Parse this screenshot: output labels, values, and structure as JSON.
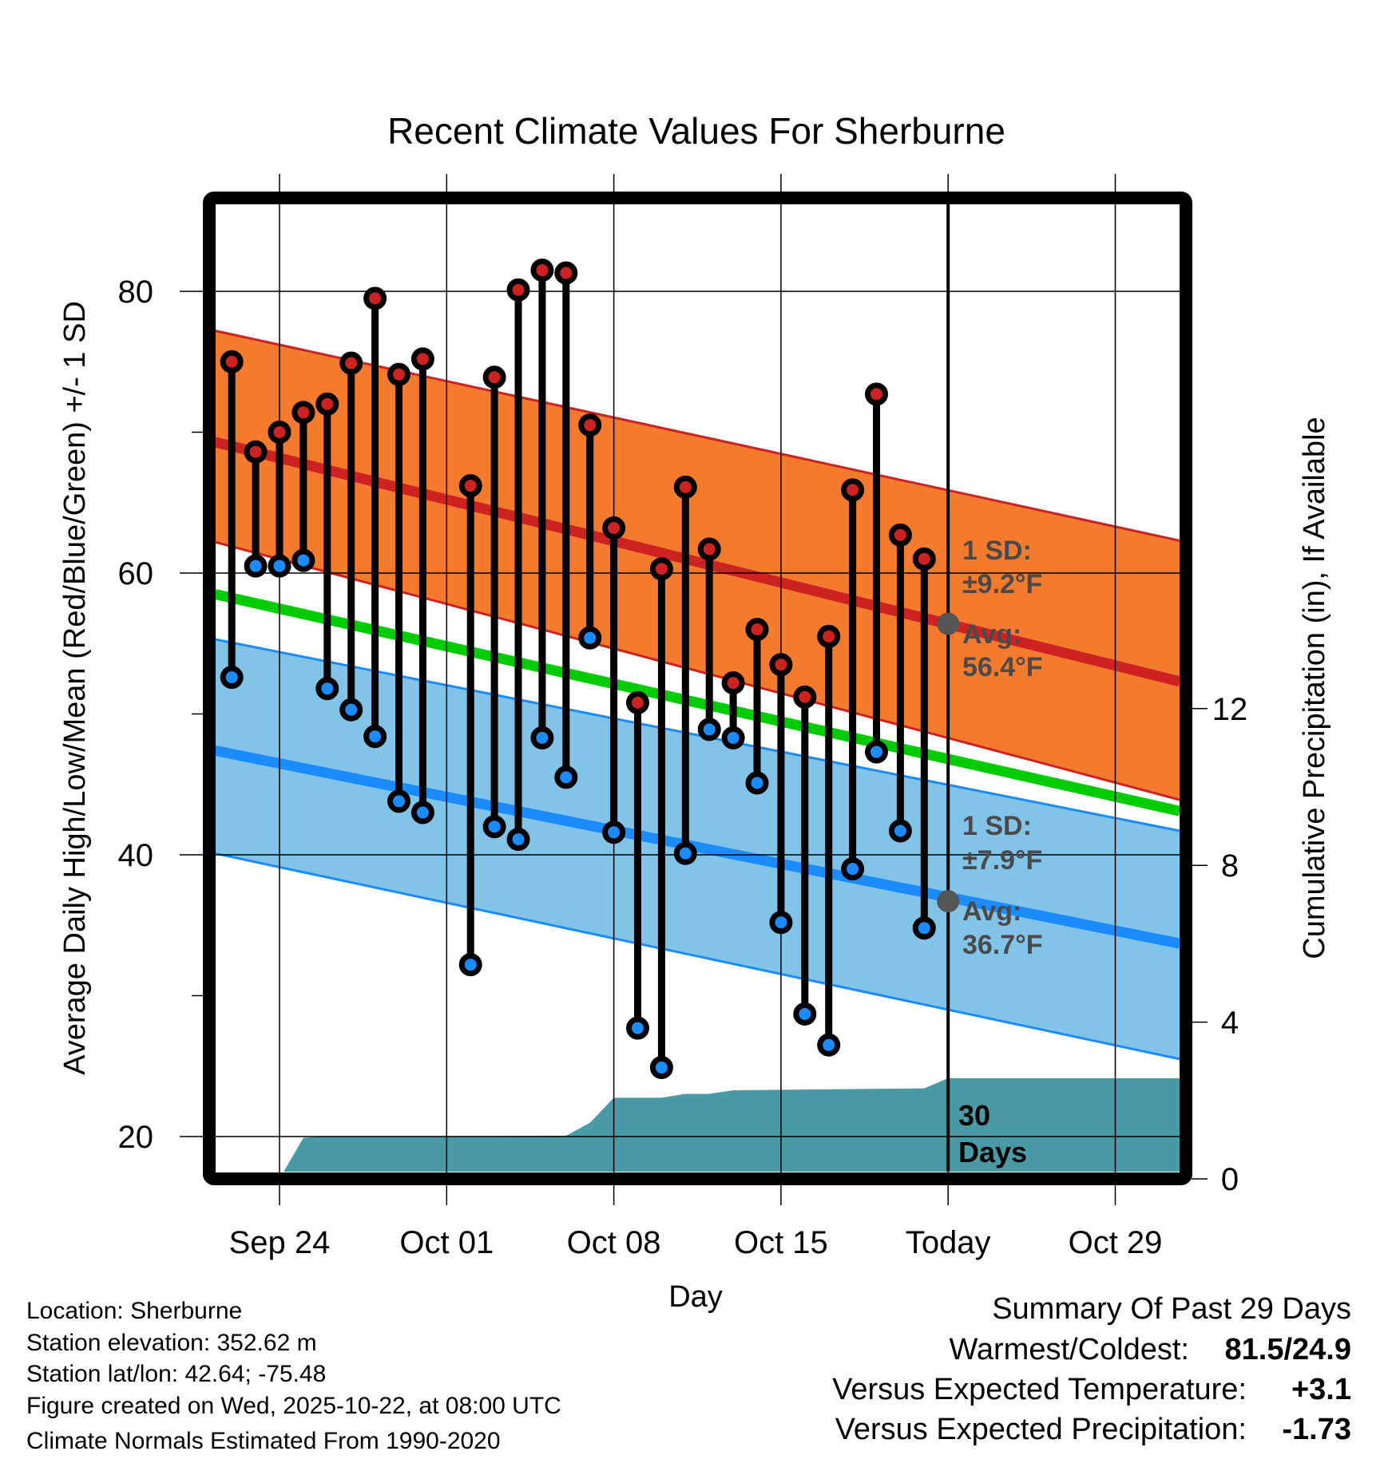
{
  "chart_data": {
    "type": "line",
    "title": "Recent Climate Values For Sherburne",
    "xlabel": "Day",
    "ylabel": "Average Daily High/Low/Mean (Red/Blue/Green) +/- 1 SD",
    "y2label": "Cumulative Precipitation (in), If Available",
    "x_reference_date": "Sep 24",
    "x_unit": "days since Sep 24",
    "xlim": [
      -2.7,
      37.7
    ],
    "ylim": [
      17.3,
      86.4
    ],
    "y2lim": [
      -0.2,
      24.7
    ],
    "xticks": [
      {
        "day": 0,
        "label": "Sep 24"
      },
      {
        "day": 7,
        "label": "Oct 01"
      },
      {
        "day": 14,
        "label": "Oct 08"
      },
      {
        "day": 21,
        "label": "Oct 15"
      },
      {
        "day": 28,
        "label": "Today"
      },
      {
        "day": 35,
        "label": "Oct 29"
      }
    ],
    "yticks": [
      {
        "value": 80,
        "label": "80"
      },
      {
        "value": 60,
        "label": "60"
      },
      {
        "value": 40,
        "label": "40"
      },
      {
        "value": 20,
        "label": "20"
      }
    ],
    "yminor": [
      70,
      50,
      30
    ],
    "y2ticks": [
      {
        "value": 0,
        "label": "0"
      },
      {
        "value": 4,
        "label": "4"
      },
      {
        "value": 8,
        "label": "8"
      },
      {
        "value": 12,
        "label": "12"
      }
    ],
    "grid": true,
    "observed": {
      "days": [
        -2,
        -1,
        0,
        1,
        2,
        3,
        4,
        5,
        6,
        8,
        9,
        10,
        11,
        12,
        13,
        14,
        15,
        16,
        17,
        18,
        19,
        20,
        21,
        22,
        23,
        24,
        25,
        26,
        27
      ],
      "high": [
        75.0,
        68.6,
        70.0,
        71.4,
        72.0,
        74.9,
        79.5,
        74.1,
        75.2,
        66.2,
        73.9,
        80.1,
        81.5,
        81.3,
        70.5,
        63.2,
        50.8,
        60.3,
        66.1,
        61.7,
        52.2,
        56.0,
        53.5,
        51.2,
        55.5,
        65.9,
        72.7,
        62.7,
        61.0
      ],
      "low": [
        52.6,
        60.5,
        60.5,
        60.9,
        51.8,
        50.3,
        48.4,
        43.8,
        43.0,
        32.2,
        42.0,
        41.1,
        48.3,
        45.5,
        55.4,
        41.6,
        27.7,
        24.9,
        40.1,
        48.9,
        48.3,
        45.1,
        35.2,
        28.7,
        26.5,
        39.0,
        47.3,
        41.7,
        34.8
      ]
    },
    "normals": {
      "days": [
        -2.7,
        37.7
      ],
      "high_mean": [
        69.3,
        52.3
      ],
      "high_upper": [
        77.2,
        62.3
      ],
      "high_lower": [
        62.2,
        43.9
      ],
      "low_mean": [
        47.4,
        33.7
      ],
      "low_upper": [
        55.3,
        41.7
      ],
      "low_lower": [
        40.1,
        25.5
      ],
      "mean": [
        58.5,
        43.1
      ]
    },
    "precip_cumulative": {
      "days": [
        0,
        1,
        2,
        12,
        13,
        14,
        16,
        17,
        18,
        19,
        27,
        28,
        37.7
      ],
      "values": [
        0,
        1.05,
        1.08,
        1.1,
        1.43,
        2.07,
        2.07,
        2.17,
        2.17,
        2.26,
        2.31,
        2.57,
        2.57
      ]
    },
    "today_markers": {
      "high_avg": 56.4,
      "low_avg": 36.7
    },
    "annotations": {
      "high_sd": "1 SD:",
      "high_sd_val": "±9.2°F",
      "high_avg": "Avg:",
      "high_avg_val": "56.4°F",
      "low_sd": "1 SD:",
      "low_sd_val": "±7.9°F",
      "low_avg": "Avg:",
      "low_avg_val": "36.7°F",
      "window_num": "30",
      "window_unit": "Days"
    },
    "colors": {
      "high_band": "#f47a2e",
      "high_line": "#cc2222",
      "low_band": "#82c3e8",
      "low_line": "#1a8cff",
      "mean_line": "#00cc00",
      "precip": "#4a9aa5",
      "high_dot": "#cc2222",
      "low_dot": "#1a8cff",
      "today_dot": "#555555"
    }
  },
  "footer": {
    "location": "Location: Sherburne",
    "elevation": "Station elevation: 352.62 m",
    "latlon": "Station lat/lon: 42.64; -75.48",
    "created": "Figure created on Wed, 2025-10-22, at 08:00 UTC",
    "normals": "Climate Normals Estimated From 1990-2020"
  },
  "summary": {
    "title": "Summary Of Past 29 Days",
    "warmest_label": "Warmest/Coldest:",
    "warmest_value": "81.5/24.9",
    "temp_label": "Versus Expected Temperature:",
    "temp_value": "+3.1",
    "temp_color": "#cc2222",
    "precip_label": "Versus Expected Precipitation:",
    "precip_value": "-1.73",
    "precip_color": "#a0522d"
  }
}
